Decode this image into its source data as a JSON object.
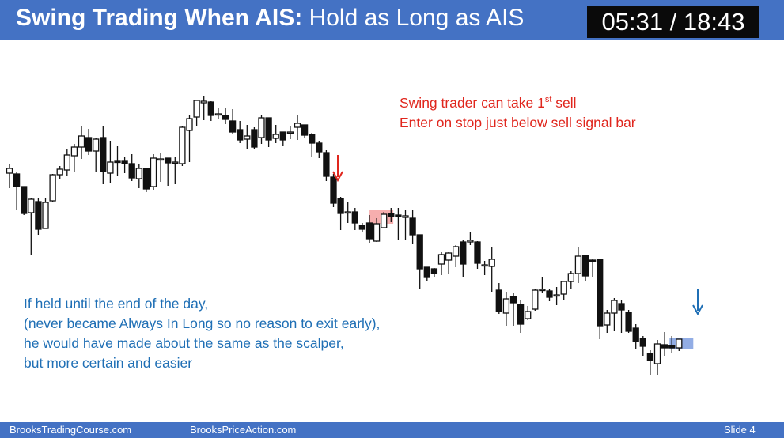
{
  "header": {
    "title_bold": "Swing Trading When AIS:",
    "title_rest": "Hold as Long as AIS",
    "timer": "05:31 / 18:43"
  },
  "annotations": {
    "red_line1_pre": "Swing trader can take 1",
    "red_line1_sup": "st",
    "red_line1_post": " sell",
    "red_line2": "Enter on stop just below sell signal bar",
    "blue_lines": [
      "If held until the end of the day,",
      "(never became Always In Long so no reason to exit early),",
      "he would have made about the same as the scalper,",
      "but more certain and easier"
    ]
  },
  "footer": {
    "left": "BrooksTradingCourse.com",
    "mid": "BrooksPriceAction.com",
    "right": "Slide  4"
  },
  "colors": {
    "header_bg": "#4472c4",
    "red": "#e0261d",
    "blue": "#1f6fb5",
    "signal_highlight": "#f4a0a0",
    "exit_highlight": "#7f9fe0"
  },
  "chart_data": {
    "type": "candlestick",
    "bars": [
      [
        219,
        213,
        207,
        238
      ],
      [
        220,
        236,
        217,
        265
      ],
      [
        236,
        270,
        265,
        272
      ],
      [
        269,
        252,
        251,
        322
      ],
      [
        255,
        290,
        250,
        297
      ],
      [
        289,
        256,
        251,
        289
      ],
      [
        254,
        221,
        220,
        256
      ],
      [
        221,
        214,
        210,
        227
      ],
      [
        215,
        196,
        188,
        222
      ],
      [
        197,
        186,
        182,
        218
      ],
      [
        186,
        172,
        159,
        201
      ],
      [
        174,
        191,
        163,
        196
      ],
      [
        191,
        176,
        174,
        218
      ],
      [
        174,
        217,
        160,
        233
      ],
      [
        219,
        205,
        178,
        232
      ],
      [
        204,
        205,
        185,
        222
      ],
      [
        204,
        207,
        198,
        219
      ],
      [
        207,
        225,
        195,
        229
      ],
      [
        226,
        213,
        208,
        238
      ],
      [
        213,
        239,
        212,
        243
      ],
      [
        236,
        200,
        195,
        240
      ],
      [
        202,
        201,
        194,
        230
      ],
      [
        200,
        206,
        200,
        235
      ],
      [
        206,
        205,
        198,
        233
      ],
      [
        207,
        161,
        160,
        210
      ],
      [
        165,
        150,
        146,
        205
      ],
      [
        148,
        127,
        126,
        160
      ],
      [
        130,
        128,
        122,
        152
      ],
      [
        129,
        146,
        128,
        153
      ],
      [
        144,
        144,
        137,
        150
      ],
      [
        146,
        151,
        136,
        157
      ],
      [
        153,
        167,
        138,
        170
      ],
      [
        164,
        177,
        153,
        181
      ],
      [
        176,
        172,
        158,
        189
      ],
      [
        164,
        186,
        161,
        188
      ],
      [
        174,
        149,
        146,
        182
      ],
      [
        149,
        177,
        150,
        186
      ],
      [
        175,
        170,
        158,
        181
      ],
      [
        167,
        177,
        167,
        185
      ],
      [
        168,
        167,
        160,
        176
      ],
      [
        161,
        156,
        146,
        177
      ],
      [
        158,
        171,
        158,
        175
      ],
      [
        170,
        181,
        168,
        199
      ],
      [
        181,
        192,
        178,
        200
      ],
      [
        193,
        223,
        190,
        229
      ],
      [
        224,
        257,
        220,
        262
      ],
      [
        251,
        270,
        249,
        291
      ],
      [
        268,
        268,
        256,
        282
      ],
      [
        268,
        282,
        263,
        291
      ],
      [
        285,
        290,
        282,
        293
      ],
      [
        282,
        302,
        272,
        307
      ],
      [
        305,
        283,
        276,
        306
      ],
      [
        288,
        271,
        268,
        285
      ],
      [
        270,
        274,
        263,
        281
      ],
      [
        272,
        273,
        263,
        304
      ],
      [
        275,
        273,
        266,
        304
      ],
      [
        276,
        297,
        266,
        308
      ],
      [
        297,
        340,
        297,
        366
      ],
      [
        338,
        350,
        340,
        355
      ],
      [
        340,
        346,
        339,
        350
      ],
      [
        334,
        322,
        319,
        348
      ],
      [
        329,
        320,
        319,
        346
      ],
      [
        324,
        312,
        310,
        338
      ],
      [
        306,
        334,
        304,
        350
      ],
      [
        306,
        304,
        294,
        310
      ],
      [
        306,
        333,
        305,
        340
      ],
      [
        335,
        335,
        330,
        348
      ],
      [
        337,
        328,
        313,
        369
      ],
      [
        367,
        394,
        358,
        397
      ],
      [
        396,
        378,
        369,
        412
      ],
      [
        375,
        383,
        370,
        412
      ],
      [
        385,
        410,
        380,
        421
      ],
      [
        403,
        394,
        387,
        405
      ],
      [
        391,
        367,
        365,
        393
      ],
      [
        367,
        366,
        350,
        370
      ],
      [
        368,
        376,
        366,
        381
      ],
      [
        373,
        373,
        363,
        386
      ],
      [
        372,
        356,
        355,
        379
      ],
      [
        356,
        346,
        343,
        366
      ],
      [
        346,
        324,
        312,
        358
      ],
      [
        323,
        349,
        324,
        355
      ],
      [
        329,
        331,
        327,
        350
      ],
      [
        328,
        412,
        328,
        429
      ],
      [
        411,
        396,
        392,
        421
      ],
      [
        396,
        380,
        377,
        419
      ],
      [
        384,
        392,
        380,
        421
      ],
      [
        395,
        419,
        392,
        421
      ],
      [
        415,
        432,
        410,
        441
      ],
      [
        428,
        438,
        425,
        450
      ],
      [
        447,
        456,
        443,
        474
      ],
      [
        460,
        435,
        430,
        474
      ],
      [
        436,
        440,
        420,
        450
      ],
      [
        437,
        440,
        425,
        446
      ],
      [
        440,
        429,
        430,
        444
      ]
    ],
    "signal_bar_index": 51,
    "exit_bar_index": 93,
    "y_range": [
      120,
      480
    ]
  }
}
